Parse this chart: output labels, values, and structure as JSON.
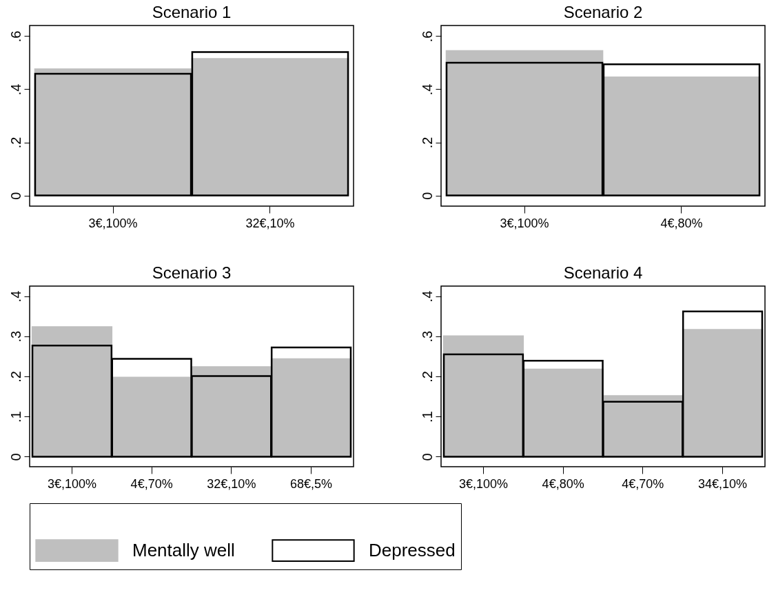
{
  "chart_data": [
    {
      "type": "bar",
      "title": "Scenario 1",
      "categories": [
        "3€,100%",
        "32€,10%"
      ],
      "series": [
        {
          "name": "Mentally well",
          "color": "#bfbfbf",
          "values": [
            0.475,
            0.514
          ]
        },
        {
          "name": "Depressed",
          "color": "#000000",
          "values": [
            0.458,
            0.54
          ]
        }
      ],
      "ylim": [
        -0.04,
        0.64
      ],
      "yticks": [
        {
          "value": 0,
          "label": "0"
        },
        {
          "value": 0.2,
          "label": ".2"
        },
        {
          "value": 0.4,
          "label": ".4"
        },
        {
          "value": 0.6,
          "label": ".6"
        }
      ],
      "legend": "bottom"
    },
    {
      "type": "bar",
      "title": "Scenario 2",
      "categories": [
        "3€,100%",
        "4€,80%"
      ],
      "series": [
        {
          "name": "Mentally well",
          "color": "#bfbfbf",
          "values": [
            0.544,
            0.445
          ]
        },
        {
          "name": "Depressed",
          "color": "#000000",
          "values": [
            0.5,
            0.494
          ]
        }
      ],
      "ylim": [
        -0.04,
        0.64
      ],
      "yticks": [
        {
          "value": 0,
          "label": "0"
        },
        {
          "value": 0.2,
          "label": ".2"
        },
        {
          "value": 0.4,
          "label": ".4"
        },
        {
          "value": 0.6,
          "label": ".6"
        }
      ],
      "legend": "bottom"
    },
    {
      "type": "bar",
      "title": "Scenario 3",
      "categories": [
        "3€,100%",
        "4€,70%",
        "32€,10%",
        "68€,5%"
      ],
      "series": [
        {
          "name": "Mentally well",
          "color": "#bfbfbf",
          "values": [
            0.323,
            0.197,
            0.223,
            0.243
          ]
        },
        {
          "name": "Depressed",
          "color": "#000000",
          "values": [
            0.277,
            0.244,
            0.201,
            0.272
          ]
        }
      ],
      "ylim": [
        -0.025,
        0.425
      ],
      "yticks": [
        {
          "value": 0,
          "label": "0"
        },
        {
          "value": 0.1,
          "label": ".1"
        },
        {
          "value": 0.2,
          "label": ".2"
        },
        {
          "value": 0.3,
          "label": ".3"
        },
        {
          "value": 0.4,
          "label": ".4"
        }
      ],
      "legend": "bottom"
    },
    {
      "type": "bar",
      "title": "Scenario 4",
      "categories": [
        "3€,100%",
        "4€,80%",
        "4€,70%",
        "34€,10%"
      ],
      "series": [
        {
          "name": "Mentally well",
          "color": "#bfbfbf",
          "values": [
            0.3,
            0.217,
            0.151,
            0.316
          ]
        },
        {
          "name": "Depressed",
          "color": "#000000",
          "values": [
            0.255,
            0.239,
            0.137,
            0.362
          ]
        }
      ],
      "ylim": [
        -0.025,
        0.425
      ],
      "yticks": [
        {
          "value": 0,
          "label": "0"
        },
        {
          "value": 0.1,
          "label": ".1"
        },
        {
          "value": 0.2,
          "label": ".2"
        },
        {
          "value": 0.3,
          "label": ".3"
        },
        {
          "value": 0.4,
          "label": ".4"
        }
      ],
      "legend": "bottom"
    }
  ]
}
